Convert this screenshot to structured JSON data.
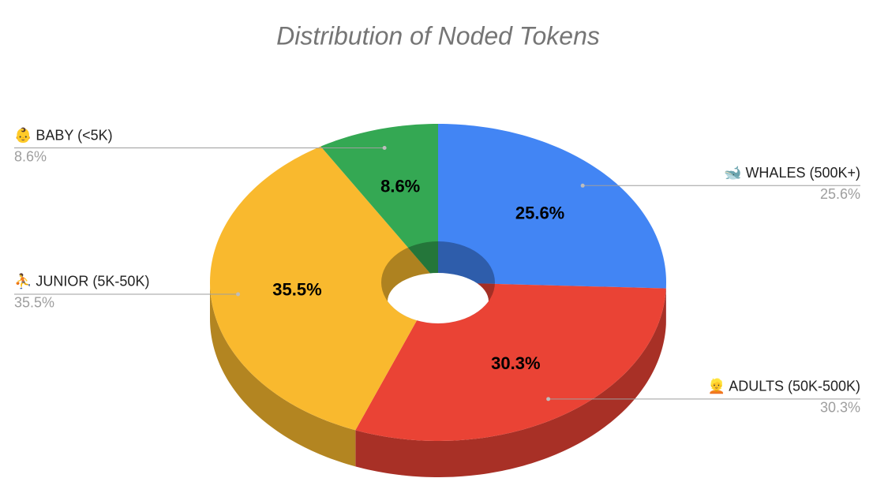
{
  "chart_data": {
    "type": "pie",
    "title": "Distribution of Noded Tokens",
    "categories": [
      "🐋 WHALES (500K+)",
      "👱 ADULTS (50K-500K)",
      "⛹ JUNIOR (5K-50K)",
      "👶 BABY (<5K)"
    ],
    "values": [
      25.6,
      30.3,
      35.5,
      8.6
    ],
    "value_labels": [
      "25.6%",
      "30.3%",
      "35.5%",
      "8.6%"
    ],
    "colors": [
      "#4285f4",
      "#ea4335",
      "#f9b92e",
      "#34a853"
    ]
  }
}
